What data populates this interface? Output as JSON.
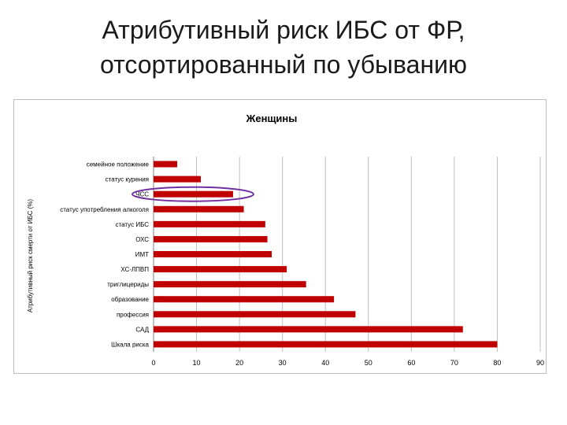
{
  "slide": {
    "title_line1": "Атрибутивный риск ИБС от ФР,",
    "title_line2": "отсортированный по убыванию"
  },
  "chart_data": {
    "type": "bar",
    "orientation": "horizontal",
    "title": "Женщины",
    "xlabel": "",
    "ylabel": "Атрибутивный риск смерти от ИБС (%)",
    "xlim": [
      0,
      90
    ],
    "xticks": [
      0,
      10,
      20,
      30,
      40,
      50,
      60,
      70,
      80,
      90
    ],
    "grid": true,
    "bar_color": "#c00000",
    "highlight": {
      "category": "ЧСС",
      "shape": "ellipse",
      "color": "#7030a0"
    },
    "categories": [
      "семейное положение",
      "статус курения",
      "ЧСС",
      "статус употребления алкоголя",
      "статус ИБС",
      "ОХС",
      "ИМТ",
      "ХС-ЛПВП",
      "триглицериды",
      "образование",
      "профессия",
      "САД",
      "Шкала риска"
    ],
    "values": [
      5.5,
      11,
      18.5,
      21,
      26,
      26.5,
      27.5,
      31,
      35.5,
      42,
      47,
      72,
      80
    ]
  }
}
